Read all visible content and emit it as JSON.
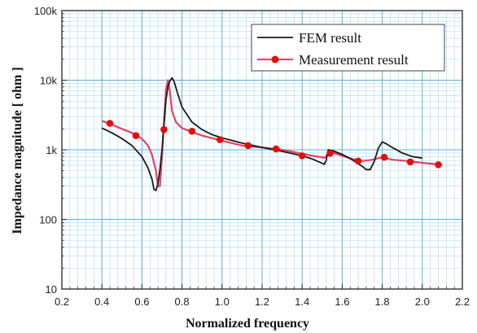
{
  "chart_data": {
    "type": "line",
    "xlabel": "Normalized frequency",
    "ylabel": "Impedance magnitude [ ohm ]",
    "xlim": [
      0.2,
      2.2
    ],
    "ylim": [
      10,
      100000
    ],
    "yscale": "log",
    "xticks": [
      "0.2",
      "0.4",
      "0.6",
      "0.8",
      "1.0",
      "1.2",
      "1.4",
      "1.6",
      "1.8",
      "2.0",
      "2.2"
    ],
    "yticks": [
      "10",
      "100",
      "1k",
      "10k",
      "100k"
    ],
    "grid": true,
    "legend_position": "top-right",
    "series": [
      {
        "name": "FEM result",
        "color": "#1a1a1a",
        "marker": "none",
        "x": [
          0.4,
          0.45,
          0.5,
          0.55,
          0.6,
          0.63,
          0.65,
          0.66,
          0.67,
          0.68,
          0.69,
          0.7,
          0.71,
          0.72,
          0.73,
          0.74,
          0.75,
          0.76,
          0.78,
          0.8,
          0.85,
          0.9,
          0.95,
          1.0,
          1.1,
          1.2,
          1.3,
          1.4,
          1.45,
          1.5,
          1.51,
          1.52,
          1.53,
          1.55,
          1.6,
          1.65,
          1.7,
          1.72,
          1.74,
          1.76,
          1.78,
          1.8,
          1.82,
          1.85,
          1.9,
          1.95,
          2.0
        ],
        "y": [
          2050,
          1750,
          1450,
          1150,
          800,
          550,
          380,
          270,
          260,
          330,
          520,
          1000,
          2400,
          5200,
          8200,
          9800,
          10800,
          9600,
          6200,
          4100,
          2500,
          1950,
          1650,
          1480,
          1250,
          1080,
          950,
          820,
          740,
          640,
          620,
          700,
          1000,
          980,
          860,
          720,
          580,
          520,
          520,
          680,
          1050,
          1300,
          1220,
          1080,
          900,
          800,
          760
        ]
      },
      {
        "name": "Measurement result",
        "color": "#e8405e",
        "marker": "circle",
        "marker_color": "#e10e0e",
        "x": [
          0.4,
          0.45,
          0.5,
          0.55,
          0.6,
          0.63,
          0.65,
          0.67,
          0.68,
          0.69,
          0.7,
          0.71,
          0.72,
          0.73,
          0.74,
          0.75,
          0.77,
          0.8,
          0.85,
          0.9,
          1.0,
          1.1,
          1.2,
          1.3,
          1.4,
          1.45,
          1.5,
          1.51,
          1.53,
          1.55,
          1.6,
          1.65,
          1.7,
          1.72,
          1.75,
          1.8,
          1.85,
          1.9,
          2.0,
          2.1
        ],
        "y": [
          2600,
          2300,
          2000,
          1750,
          1450,
          1150,
          850,
          500,
          300,
          300,
          800,
          2500,
          7500,
          10000,
          6800,
          3600,
          2500,
          2050,
          1800,
          1600,
          1350,
          1150,
          1080,
          1000,
          880,
          820,
          780,
          760,
          880,
          920,
          820,
          740,
          690,
          700,
          720,
          780,
          720,
          700,
          650,
          610
        ],
        "marker_x": [
          0.44,
          0.57,
          0.71,
          0.85,
          0.99,
          1.13,
          1.27,
          1.4,
          1.54,
          1.68,
          1.81,
          1.94,
          2.08
        ],
        "marker_y": [
          2400,
          1600,
          1950,
          1850,
          1400,
          1150,
          1030,
          820,
          890,
          690,
          780,
          670,
          610
        ]
      }
    ]
  }
}
